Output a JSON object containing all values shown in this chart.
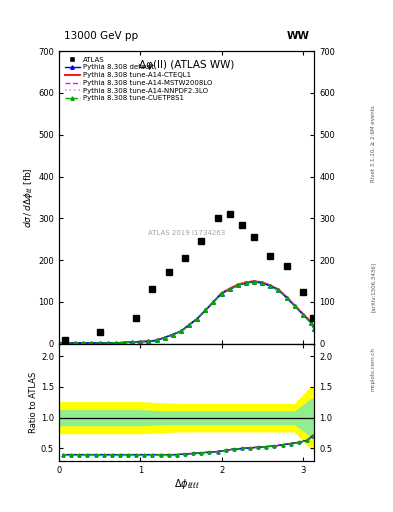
{
  "title_main": "Δφ(ll) (ATLAS WW)",
  "header_left": "13000 GeV pp",
  "header_right": "WW",
  "ylabel_main": "dσ / dΔφ_{ℓℓ} [fb]",
  "ylabel_ratio": "Ratio to ATLAS",
  "xlabel": "Δ φ_{ℓℓℓℓ}",
  "watermark": "ATLAS 2019 I1734263",
  "rivet_text": "Rivet 3.1.10, ≥ 2.6M events",
  "arxiv_text": "[arXiv:1306.3436]",
  "mcplots_text": "mcplots.cern.ch",
  "atlas_x": [
    0.08,
    0.5,
    0.95,
    1.15,
    1.35,
    1.55,
    1.75,
    1.95,
    2.1,
    2.25,
    2.4,
    2.6,
    2.8,
    3.0,
    3.13
  ],
  "atlas_y": [
    8,
    28,
    62,
    130,
    172,
    205,
    245,
    300,
    310,
    285,
    255,
    210,
    185,
    125,
    62
  ],
  "dphi_x": [
    0.0,
    0.1,
    0.2,
    0.3,
    0.4,
    0.5,
    0.6,
    0.7,
    0.8,
    0.9,
    1.0,
    1.1,
    1.2,
    1.3,
    1.4,
    1.5,
    1.6,
    1.7,
    1.8,
    1.9,
    2.0,
    2.1,
    2.2,
    2.3,
    2.4,
    2.5,
    2.6,
    2.7,
    2.8,
    2.9,
    3.0,
    3.1,
    3.14
  ],
  "pythia_default_y": [
    2,
    2,
    2,
    2,
    2,
    2,
    2,
    2,
    3,
    4,
    5,
    6,
    8,
    15,
    22,
    30,
    45,
    60,
    80,
    100,
    120,
    130,
    140,
    145,
    148,
    145,
    138,
    128,
    110,
    90,
    70,
    50,
    35
  ],
  "pythia_cteql1_y": [
    2,
    2,
    2,
    2,
    2,
    2,
    2,
    2,
    3,
    4,
    5,
    6,
    8,
    15,
    22,
    30,
    45,
    60,
    80,
    100,
    122,
    132,
    142,
    147,
    150,
    147,
    140,
    130,
    112,
    92,
    72,
    52,
    37
  ],
  "pythia_mstw_y": [
    2,
    2,
    2,
    2,
    2,
    2,
    2,
    2,
    3,
    4,
    5,
    6,
    8,
    15,
    22,
    30,
    45,
    60,
    80,
    100,
    121,
    131,
    141,
    146,
    149,
    146,
    139,
    129,
    111,
    91,
    71,
    51,
    36
  ],
  "pythia_nnpdf_y": [
    2,
    2,
    2,
    2,
    2,
    2,
    2,
    2,
    3,
    4,
    5,
    6,
    8,
    15,
    22,
    30,
    45,
    60,
    80,
    100,
    121,
    131,
    141,
    146,
    149,
    146,
    139,
    129,
    111,
    91,
    71,
    51,
    36
  ],
  "pythia_cuetp_y": [
    2,
    2,
    2,
    2,
    2,
    2,
    2,
    2,
    3,
    4,
    5,
    6,
    8,
    15,
    22,
    30,
    45,
    60,
    80,
    100,
    120,
    130,
    140,
    145,
    148,
    145,
    138,
    128,
    110,
    90,
    70,
    50,
    35
  ],
  "ratio_x": [
    0.05,
    0.15,
    0.25,
    0.35,
    0.45,
    0.55,
    0.65,
    0.75,
    0.85,
    0.95,
    1.05,
    1.15,
    1.25,
    1.35,
    1.45,
    1.55,
    1.65,
    1.75,
    1.85,
    1.95,
    2.05,
    2.15,
    2.25,
    2.35,
    2.45,
    2.55,
    2.65,
    2.75,
    2.85,
    2.95,
    3.05,
    3.12
  ],
  "ratio_default": [
    0.4,
    0.4,
    0.4,
    0.4,
    0.4,
    0.4,
    0.4,
    0.4,
    0.4,
    0.4,
    0.4,
    0.4,
    0.4,
    0.4,
    0.4,
    0.41,
    0.42,
    0.43,
    0.44,
    0.45,
    0.47,
    0.49,
    0.5,
    0.51,
    0.52,
    0.53,
    0.54,
    0.56,
    0.58,
    0.6,
    0.63,
    0.7
  ],
  "ratio_cteql1": [
    0.4,
    0.4,
    0.4,
    0.4,
    0.4,
    0.4,
    0.4,
    0.4,
    0.4,
    0.4,
    0.4,
    0.4,
    0.4,
    0.4,
    0.4,
    0.41,
    0.42,
    0.43,
    0.44,
    0.45,
    0.47,
    0.49,
    0.5,
    0.51,
    0.52,
    0.53,
    0.54,
    0.56,
    0.58,
    0.6,
    0.63,
    0.71
  ],
  "ratio_mstw": [
    0.4,
    0.4,
    0.4,
    0.4,
    0.4,
    0.4,
    0.4,
    0.4,
    0.4,
    0.4,
    0.4,
    0.4,
    0.4,
    0.4,
    0.4,
    0.41,
    0.42,
    0.43,
    0.44,
    0.45,
    0.47,
    0.49,
    0.5,
    0.51,
    0.52,
    0.53,
    0.54,
    0.56,
    0.58,
    0.6,
    0.63,
    0.7
  ],
  "ratio_nnpdf": [
    0.4,
    0.4,
    0.4,
    0.4,
    0.4,
    0.4,
    0.4,
    0.4,
    0.4,
    0.4,
    0.4,
    0.4,
    0.4,
    0.4,
    0.4,
    0.41,
    0.42,
    0.43,
    0.44,
    0.45,
    0.47,
    0.49,
    0.5,
    0.51,
    0.52,
    0.53,
    0.54,
    0.56,
    0.58,
    0.6,
    0.63,
    0.7
  ],
  "ratio_cuetp": [
    0.4,
    0.4,
    0.4,
    0.4,
    0.4,
    0.4,
    0.4,
    0.4,
    0.4,
    0.4,
    0.4,
    0.4,
    0.4,
    0.4,
    0.4,
    0.41,
    0.42,
    0.43,
    0.44,
    0.45,
    0.47,
    0.49,
    0.5,
    0.51,
    0.52,
    0.53,
    0.54,
    0.56,
    0.58,
    0.6,
    0.63,
    0.7
  ],
  "band_x": [
    0.0,
    0.5,
    1.0,
    1.3,
    1.5,
    1.7,
    1.9,
    2.1,
    2.3,
    2.5,
    2.7,
    2.9,
    3.1,
    3.14
  ],
  "band_yellow_lo": [
    0.75,
    0.75,
    0.75,
    0.77,
    0.78,
    0.78,
    0.78,
    0.78,
    0.78,
    0.78,
    0.78,
    0.78,
    0.5,
    0.5
  ],
  "band_yellow_hi": [
    1.25,
    1.25,
    1.25,
    1.23,
    1.22,
    1.22,
    1.22,
    1.22,
    1.22,
    1.22,
    1.22,
    1.22,
    1.5,
    1.5
  ],
  "band_green_lo": [
    0.88,
    0.88,
    0.88,
    0.9,
    0.9,
    0.9,
    0.9,
    0.9,
    0.9,
    0.9,
    0.9,
    0.9,
    0.7,
    0.7
  ],
  "band_green_hi": [
    1.12,
    1.12,
    1.12,
    1.1,
    1.1,
    1.1,
    1.1,
    1.1,
    1.1,
    1.1,
    1.1,
    1.1,
    1.3,
    1.3
  ],
  "color_default": "#0000ff",
  "color_cteql1": "#ff0000",
  "color_mstw": "#ff00ff",
  "color_nnpdf": "#ee82ee",
  "color_cuetp": "#00aa00",
  "color_atlas": "#000000",
  "ylim_main": [
    0,
    700
  ],
  "ylim_ratio": [
    0.3,
    2.2
  ],
  "xlim": [
    0,
    3.14159
  ],
  "yticks_main": [
    0,
    100,
    200,
    300,
    400,
    500,
    600,
    700
  ],
  "yticks_ratio": [
    0.5,
    1.0,
    1.5,
    2.0
  ],
  "xticks": [
    0,
    1,
    2,
    3
  ]
}
